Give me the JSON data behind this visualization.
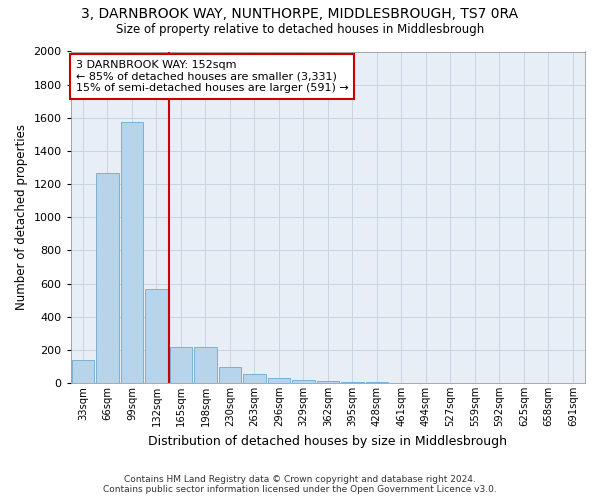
{
  "title": "3, DARNBROOK WAY, NUNTHORPE, MIDDLESBROUGH, TS7 0RA",
  "subtitle": "Size of property relative to detached houses in Middlesbrough",
  "xlabel": "Distribution of detached houses by size in Middlesbrough",
  "ylabel": "Number of detached properties",
  "bar_labels": [
    "33sqm",
    "66sqm",
    "99sqm",
    "132sqm",
    "165sqm",
    "198sqm",
    "230sqm",
    "263sqm",
    "296sqm",
    "329sqm",
    "362sqm",
    "395sqm",
    "428sqm",
    "461sqm",
    "494sqm",
    "527sqm",
    "559sqm",
    "592sqm",
    "625sqm",
    "658sqm",
    "691sqm"
  ],
  "bar_values": [
    140,
    1270,
    1575,
    570,
    215,
    215,
    95,
    55,
    30,
    20,
    10,
    8,
    5,
    3,
    2,
    1,
    1,
    0,
    0,
    0,
    0
  ],
  "bar_color": "#b8d4ea",
  "bar_edge_color": "#6aaad4",
  "vline_color": "#cc0000",
  "vline_x_index": 3.5,
  "ylim": [
    0,
    2000
  ],
  "yticks": [
    0,
    200,
    400,
    600,
    800,
    1000,
    1200,
    1400,
    1600,
    1800,
    2000
  ],
  "annotation_line1": "3 DARNBROOK WAY: 152sqm",
  "annotation_line2": "← 85% of detached houses are smaller (3,331)",
  "annotation_line3": "15% of semi-detached houses are larger (591) →",
  "annotation_box_color": "white",
  "annotation_box_edge_color": "#cc0000",
  "footer_line1": "Contains HM Land Registry data © Crown copyright and database right 2024.",
  "footer_line2": "Contains public sector information licensed under the Open Government Licence v3.0.",
  "grid_color": "#c8d4e4",
  "bg_color": "#e8eef6"
}
